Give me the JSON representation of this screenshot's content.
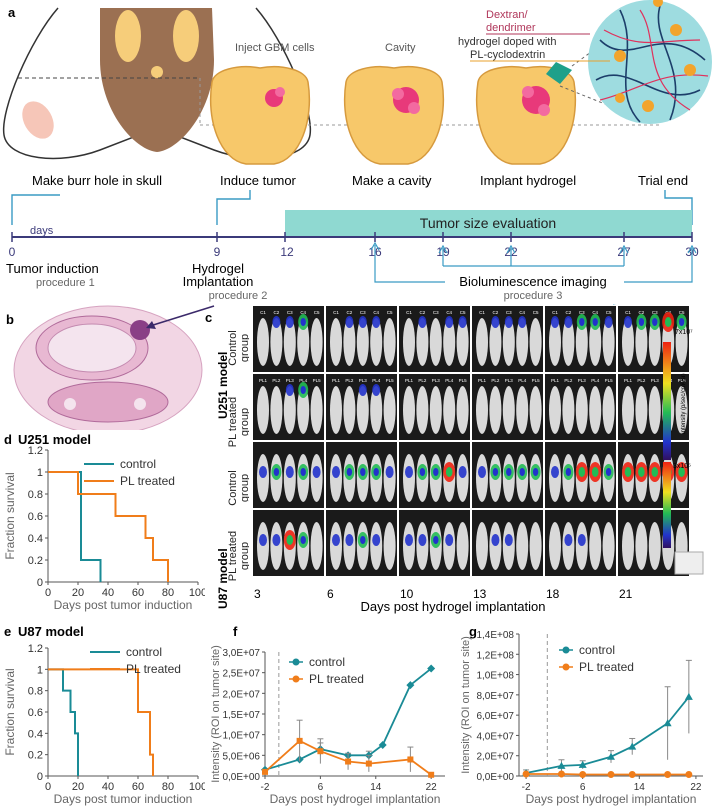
{
  "panel_labels": {
    "a": "a",
    "b": "b",
    "c": "c",
    "d": "d",
    "e": "e",
    "f": "f",
    "g": "g"
  },
  "schematic": {
    "stage_captions": [
      "Make burr hole in skull",
      "Induce tumor",
      "Make a cavity",
      "Implant hydrogel",
      "Trial end"
    ],
    "step_titles": [
      "Inject GBM cells",
      "Cavity"
    ],
    "inset_labels": [
      "Dextran/",
      "dendrimer",
      "hydrogel doped with",
      "PL-cyclodextrin"
    ]
  },
  "timeline": {
    "days_label": "days",
    "ticks": [
      "0",
      "9",
      "12",
      "16",
      "19",
      "22",
      "27",
      "30"
    ],
    "band_label": "Tumor size evaluation",
    "tumor_induction": "Tumor induction",
    "procedure1": "procedure 1",
    "hydrogel_line1": "Hydrogel",
    "hydrogel_line2": "Implantation",
    "procedure2": "procedure 2",
    "bioluminescence": "Bioluminescence imaging",
    "procedure3": "procedure 3"
  },
  "imaging": {
    "u251_label": "U251 model",
    "u87_label": "U87 model",
    "control_group": "Control group",
    "pl_group": "PL treated group",
    "day_labels": [
      "3",
      "6",
      "10",
      "13",
      "18",
      "21"
    ],
    "x_caption": "Days post hydrogel implantation",
    "control_mouse_ids": [
      "C1",
      "C2",
      "C3",
      "C4",
      "C5"
    ],
    "pl_mouse_ids": [
      "PL1",
      "PL2",
      "PL3",
      "PL4",
      "PL5"
    ],
    "colorbar_max": "7x10⁷",
    "colorbar_min": "3x10⁵",
    "colorbar_label": "Intensity (p/sec/cm²/sr)",
    "colors": {
      "lum_low": "#2233cc",
      "lum_mid": "#22bb55",
      "lum_high": "#ee2211",
      "cavity": "#f7c86a",
      "tumor": "#e8397a"
    }
  },
  "chart_data": [
    {
      "id": "d",
      "type": "line",
      "step": true,
      "title": "U251 model",
      "xlabel": "Days post tumor induction",
      "ylabel": "Fraction survival",
      "xlim": [
        0,
        100
      ],
      "ylim": [
        0,
        1.2
      ],
      "xticks": [
        "0",
        "20",
        "40",
        "60",
        "80",
        "100"
      ],
      "yticks": [
        "0",
        "0.2",
        "0.4",
        "0.6",
        "0.8",
        "1",
        "1.2"
      ],
      "series": [
        {
          "name": "control",
          "color": "#1a8b96",
          "x": [
            0,
            22,
            22,
            35,
            35
          ],
          "y": [
            1,
            1,
            0.2,
            0.2,
            0
          ]
        },
        {
          "name": "PL treated",
          "color": "#f07d1a",
          "x": [
            0,
            20,
            20,
            45,
            45,
            65,
            65,
            70,
            70,
            80,
            80
          ],
          "y": [
            1,
            1,
            0.8,
            0.8,
            0.6,
            0.6,
            0.4,
            0.4,
            0.2,
            0.2,
            0
          ]
        }
      ]
    },
    {
      "id": "e",
      "type": "line",
      "step": true,
      "title": "U87 model",
      "xlabel": "Days post tumor induction",
      "ylabel": "Fraction survival",
      "xlim": [
        0,
        100
      ],
      "ylim": [
        0,
        1.2
      ],
      "xticks": [
        "0",
        "20",
        "40",
        "60",
        "80",
        "100"
      ],
      "yticks": [
        "0",
        "0.2",
        "0.4",
        "0.6",
        "0.8",
        "1",
        "1.2"
      ],
      "series": [
        {
          "name": "control",
          "color": "#1a8b96",
          "x": [
            0,
            10,
            10,
            15,
            15,
            18,
            18,
            20,
            20
          ],
          "y": [
            1,
            1,
            0.8,
            0.8,
            0.6,
            0.6,
            0.4,
            0.4,
            0
          ]
        },
        {
          "name": "PL treated",
          "color": "#f07d1a",
          "x": [
            0,
            60,
            60,
            68,
            68,
            70,
            70
          ],
          "y": [
            1,
            1,
            0.6,
            0.6,
            0.2,
            0.2,
            0
          ]
        }
      ]
    },
    {
      "id": "f",
      "type": "line",
      "xlabel": "Days post hydrogel implantation",
      "ylabel": "Intensity (ROI on tumor site)",
      "xlim": [
        -2,
        24
      ],
      "ylim": [
        0,
        30000000
      ],
      "xticks": [
        "-2",
        "6",
        "14",
        "22"
      ],
      "xtick_vals": [
        -2,
        6,
        14,
        22
      ],
      "yticks": [
        "0,0E+00",
        "5,0E+06",
        "1,0E+07",
        "1,5E+07",
        "2,0E+07",
        "2,5E+07",
        "3,0E+07"
      ],
      "vline": 0,
      "series": [
        {
          "name": "control",
          "color": "#1a8b96",
          "marker": "diamond",
          "x": [
            -2,
            3,
            6,
            10,
            13,
            15,
            19,
            22
          ],
          "y": [
            1500000,
            4000000,
            6500000,
            5000000,
            5000000,
            7500000,
            22000000,
            26000000
          ],
          "err": [
            0,
            0,
            1500000,
            0,
            1000000,
            0,
            0,
            0
          ]
        },
        {
          "name": "PL treated",
          "color": "#f07d1a",
          "marker": "square",
          "x": [
            -2,
            3,
            6,
            10,
            13,
            19,
            22
          ],
          "y": [
            1000000,
            8500000,
            6000000,
            3500000,
            3000000,
            4000000,
            300000
          ],
          "err": [
            0,
            5000000,
            3000000,
            2000000,
            2000000,
            3000000,
            0
          ]
        }
      ]
    },
    {
      "id": "g",
      "type": "line",
      "xlabel": "Days post hydrogel implantation",
      "ylabel": "Intensity (ROI on tumor site)",
      "xlim": [
        -3,
        23
      ],
      "ylim": [
        0,
        140000000
      ],
      "xticks": [
        "-2",
        "6",
        "14",
        "22"
      ],
      "xtick_vals": [
        -2,
        6,
        14,
        22
      ],
      "yticks": [
        "0,0E+00",
        "2,0E+07",
        "4,0E+07",
        "6,0E+07",
        "8,0E+07",
        "1,0E+08",
        "1,2E+08",
        "1,4E+08"
      ],
      "vline": 1,
      "series": [
        {
          "name": "control",
          "color": "#1a8b96",
          "marker": "triangle",
          "x": [
            -2,
            3,
            6,
            10,
            13,
            18,
            21
          ],
          "y": [
            3000000,
            10000000,
            11000000,
            19000000,
            29000000,
            52000000,
            78000000
          ],
          "err": [
            3000000,
            6000000,
            4000000,
            6000000,
            8000000,
            36000000,
            36000000
          ]
        },
        {
          "name": "PL treated",
          "color": "#f07d1a",
          "marker": "circle",
          "x": [
            -2,
            3,
            6,
            10,
            13,
            18,
            21
          ],
          "y": [
            2000000,
            2000000,
            1500000,
            1500000,
            1500000,
            1500000,
            1500000
          ],
          "err": [
            1000000,
            0,
            0,
            0,
            0,
            0,
            0
          ]
        }
      ]
    }
  ]
}
